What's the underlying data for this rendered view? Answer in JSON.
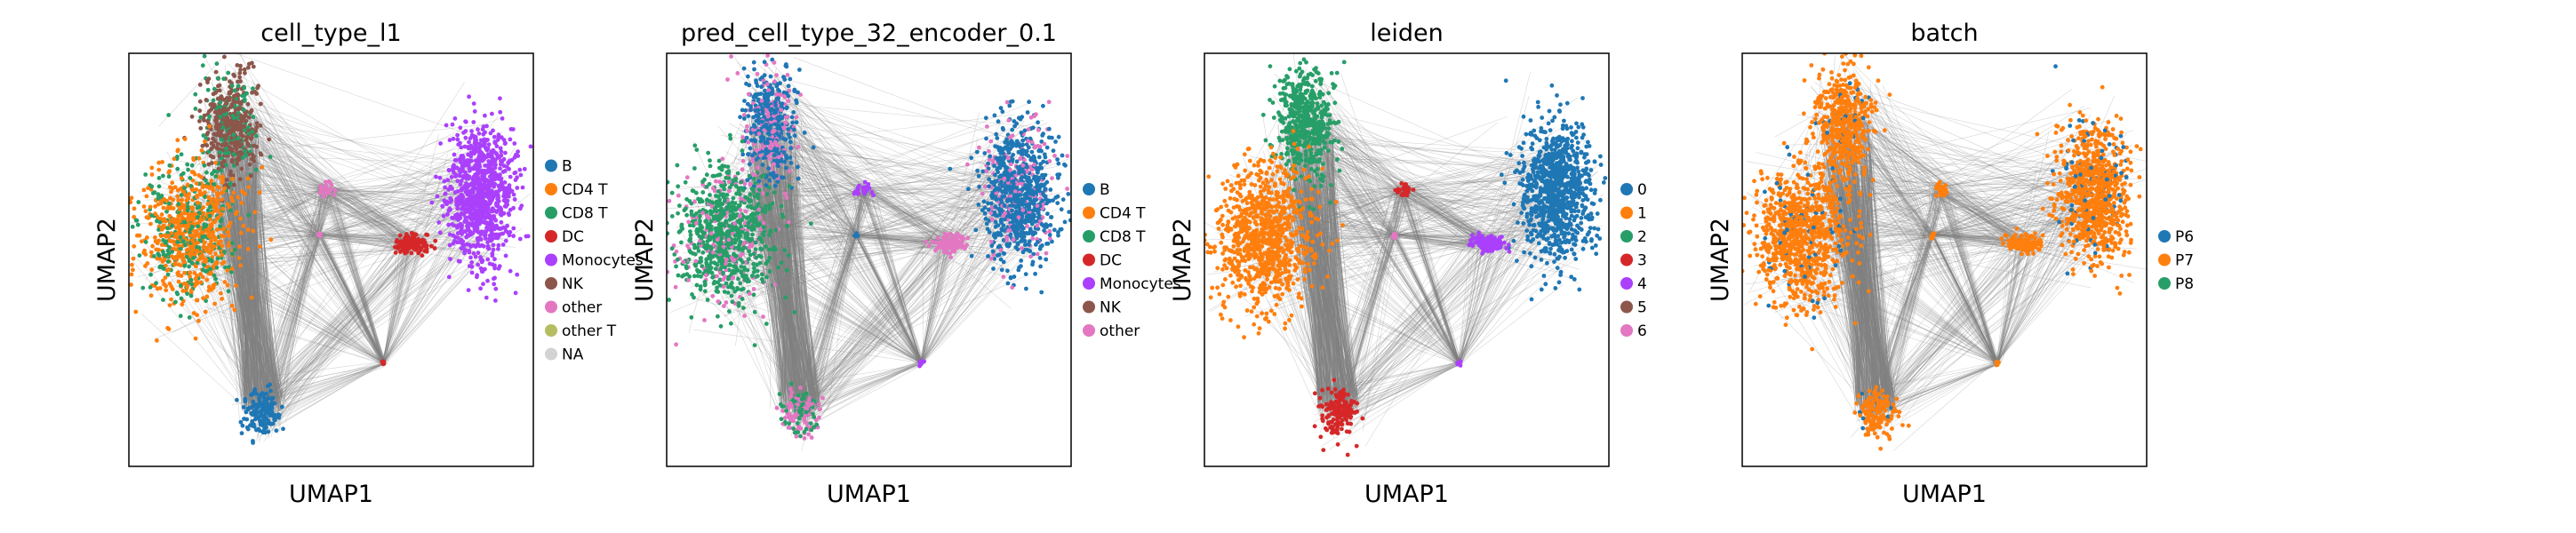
{
  "figure": {
    "panels": [
      {
        "title": "cell_type_l1",
        "xlabel": "UMAP1",
        "ylabel": "UMAP2",
        "legend": [
          {
            "label": "B",
            "color": "#1f77b4"
          },
          {
            "label": "CD4 T",
            "color": "#ff7f0e"
          },
          {
            "label": "CD8 T",
            "color": "#279e68"
          },
          {
            "label": "DC",
            "color": "#d62728"
          },
          {
            "label": "Monocytes",
            "color": "#aa40fc"
          },
          {
            "label": "NK",
            "color": "#8c564b"
          },
          {
            "label": "other",
            "color": "#e377c2"
          },
          {
            "label": "other T",
            "color": "#b5bd61"
          },
          {
            "label": "NA",
            "color": "#d3d3d3"
          }
        ]
      },
      {
        "title": "pred_cell_type_32_encoder_0.1",
        "xlabel": "UMAP1",
        "ylabel": "UMAP2",
        "legend": [
          {
            "label": "B",
            "color": "#1f77b4"
          },
          {
            "label": "CD4 T",
            "color": "#ff7f0e"
          },
          {
            "label": "CD8 T",
            "color": "#279e68"
          },
          {
            "label": "DC",
            "color": "#d62728"
          },
          {
            "label": "Monocytes",
            "color": "#aa40fc"
          },
          {
            "label": "NK",
            "color": "#8c564b"
          },
          {
            "label": "other",
            "color": "#e377c2"
          }
        ]
      },
      {
        "title": "leiden",
        "xlabel": "UMAP1",
        "ylabel": "UMAP2",
        "legend": [
          {
            "label": "0",
            "color": "#1f77b4"
          },
          {
            "label": "1",
            "color": "#ff7f0e"
          },
          {
            "label": "2",
            "color": "#279e68"
          },
          {
            "label": "3",
            "color": "#d62728"
          },
          {
            "label": "4",
            "color": "#aa40fc"
          },
          {
            "label": "5",
            "color": "#8c564b"
          },
          {
            "label": "6",
            "color": "#e377c2"
          }
        ]
      },
      {
        "title": "batch",
        "xlabel": "UMAP1",
        "ylabel": "UMAP2",
        "legend": [
          {
            "label": "P6",
            "color": "#1f77b4"
          },
          {
            "label": "P7",
            "color": "#ff7f0e"
          },
          {
            "label": "P8",
            "color": "#279e68"
          }
        ]
      }
    ],
    "edge_color": "#808080"
  },
  "chart_data": [
    {
      "type": "scatter",
      "title": "cell_type_l1",
      "xlabel": "UMAP1",
      "ylabel": "UMAP2",
      "grid": false,
      "legend_position": "right",
      "series": [
        {
          "name": "B",
          "color": "#1f77b4"
        },
        {
          "name": "CD4 T",
          "color": "#ff7f0e"
        },
        {
          "name": "CD8 T",
          "color": "#279e68"
        },
        {
          "name": "DC",
          "color": "#d62728"
        },
        {
          "name": "Monocytes",
          "color": "#aa40fc"
        },
        {
          "name": "NK",
          "color": "#8c564b"
        },
        {
          "name": "other",
          "color": "#e377c2"
        },
        {
          "name": "other T",
          "color": "#b5bd61"
        },
        {
          "name": "NA",
          "color": "#d3d3d3"
        }
      ]
    },
    {
      "type": "scatter",
      "title": "pred_cell_type_32_encoder_0.1",
      "xlabel": "UMAP1",
      "ylabel": "UMAP2",
      "grid": false,
      "legend_position": "right",
      "series": [
        {
          "name": "B",
          "color": "#1f77b4"
        },
        {
          "name": "CD4 T",
          "color": "#ff7f0e"
        },
        {
          "name": "CD8 T",
          "color": "#279e68"
        },
        {
          "name": "DC",
          "color": "#d62728"
        },
        {
          "name": "Monocytes",
          "color": "#aa40fc"
        },
        {
          "name": "NK",
          "color": "#8c564b"
        },
        {
          "name": "other",
          "color": "#e377c2"
        }
      ]
    },
    {
      "type": "scatter",
      "title": "leiden",
      "xlabel": "UMAP1",
      "ylabel": "UMAP2",
      "grid": false,
      "legend_position": "right",
      "series": [
        {
          "name": "0",
          "color": "#1f77b4"
        },
        {
          "name": "1",
          "color": "#ff7f0e"
        },
        {
          "name": "2",
          "color": "#279e68"
        },
        {
          "name": "3",
          "color": "#d62728"
        },
        {
          "name": "4",
          "color": "#aa40fc"
        },
        {
          "name": "5",
          "color": "#8c564b"
        },
        {
          "name": "6",
          "color": "#e377c2"
        }
      ]
    },
    {
      "type": "scatter",
      "title": "batch",
      "xlabel": "UMAP1",
      "ylabel": "UMAP2",
      "grid": false,
      "legend_position": "right",
      "series": [
        {
          "name": "P6",
          "color": "#1f77b4"
        },
        {
          "name": "P7",
          "color": "#ff7f0e"
        },
        {
          "name": "P8",
          "color": "#279e68"
        }
      ]
    }
  ]
}
